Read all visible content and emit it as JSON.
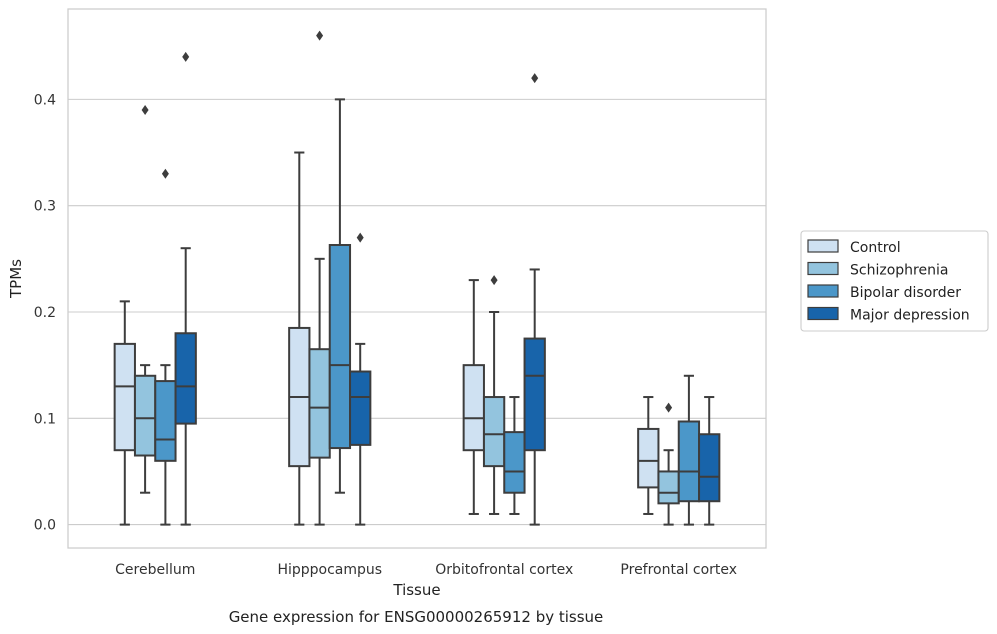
{
  "chart_data": {
    "type": "box",
    "title": "",
    "caption": "Gene expression for ENSG00000265912 by tissue",
    "xlabel": "Tissue",
    "ylabel": "TPMs",
    "ylim": [
      -0.022,
      0.485
    ],
    "yticks": [
      0.0,
      0.1,
      0.2,
      0.3,
      0.4
    ],
    "ytick_labels": [
      "0.0",
      "0.1",
      "0.2",
      "0.3",
      "0.4"
    ],
    "grid": "horizontal",
    "legend_position": "right",
    "categories": [
      "Cerebellum",
      "Hipppocampus",
      "Orbitofrontal cortex",
      "Prefrontal cortex"
    ],
    "series": [
      {
        "name": "Control",
        "color": "#cfe1f2",
        "boxes": [
          {
            "whislo": 0.0,
            "q1": 0.07,
            "med": 0.13,
            "q3": 0.17,
            "whishi": 0.21,
            "fliers": []
          },
          {
            "whislo": 0.0,
            "q1": 0.055,
            "med": 0.12,
            "q3": 0.185,
            "whishi": 0.35,
            "fliers": []
          },
          {
            "whislo": 0.01,
            "q1": 0.07,
            "med": 0.1,
            "q3": 0.15,
            "whishi": 0.23,
            "fliers": []
          },
          {
            "whislo": 0.01,
            "q1": 0.035,
            "med": 0.06,
            "q3": 0.09,
            "whishi": 0.12,
            "fliers": []
          }
        ]
      },
      {
        "name": "Schizophrenia",
        "color": "#93c4de",
        "boxes": [
          {
            "whislo": 0.03,
            "q1": 0.065,
            "med": 0.1,
            "q3": 0.14,
            "whishi": 0.15,
            "fliers": [
              0.39
            ]
          },
          {
            "whislo": 0.0,
            "q1": 0.063,
            "med": 0.11,
            "q3": 0.165,
            "whishi": 0.25,
            "fliers": [
              0.46
            ]
          },
          {
            "whislo": 0.01,
            "q1": 0.055,
            "med": 0.085,
            "q3": 0.12,
            "whishi": 0.2,
            "fliers": [
              0.23
            ]
          },
          {
            "whislo": 0.0,
            "q1": 0.02,
            "med": 0.03,
            "q3": 0.05,
            "whishi": 0.07,
            "fliers": [
              0.11
            ]
          }
        ]
      },
      {
        "name": "Bipolar disorder",
        "color": "#4b97c9",
        "boxes": [
          {
            "whislo": 0.0,
            "q1": 0.06,
            "med": 0.08,
            "q3": 0.135,
            "whishi": 0.15,
            "fliers": [
              0.33
            ]
          },
          {
            "whislo": 0.03,
            "q1": 0.072,
            "med": 0.15,
            "q3": 0.263,
            "whishi": 0.4,
            "fliers": []
          },
          {
            "whislo": 0.01,
            "q1": 0.03,
            "med": 0.05,
            "q3": 0.087,
            "whishi": 0.12,
            "fliers": []
          },
          {
            "whislo": 0.0,
            "q1": 0.022,
            "med": 0.05,
            "q3": 0.097,
            "whishi": 0.14,
            "fliers": []
          }
        ]
      },
      {
        "name": "Major depression",
        "color": "#1864aa",
        "boxes": [
          {
            "whislo": 0.0,
            "q1": 0.095,
            "med": 0.13,
            "q3": 0.18,
            "whishi": 0.26,
            "fliers": [
              0.44
            ]
          },
          {
            "whislo": 0.0,
            "q1": 0.075,
            "med": 0.12,
            "q3": 0.144,
            "whishi": 0.17,
            "fliers": [
              0.27
            ]
          },
          {
            "whislo": 0.0,
            "q1": 0.07,
            "med": 0.14,
            "q3": 0.175,
            "whishi": 0.24,
            "fliers": [
              0.42
            ]
          },
          {
            "whislo": 0.0,
            "q1": 0.022,
            "med": 0.045,
            "q3": 0.085,
            "whishi": 0.12,
            "fliers": []
          }
        ]
      }
    ]
  }
}
